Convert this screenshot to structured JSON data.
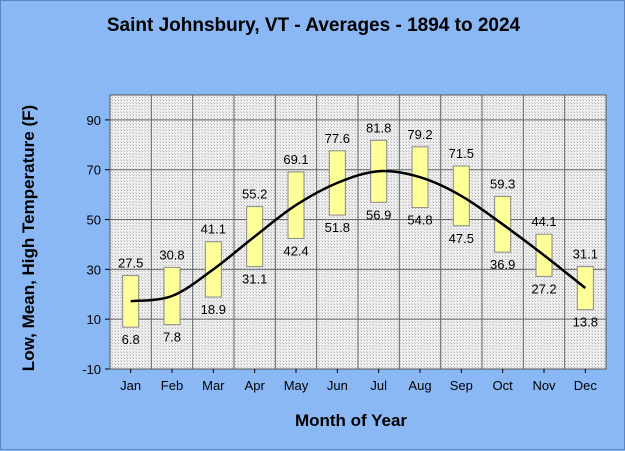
{
  "chart_data": {
    "type": "bar",
    "title": "Saint Johnsbury, VT - Averages - 1894 to 2024",
    "xlabel": "Month of Year",
    "ylabel": "Low, Mean, High Temperature (F)",
    "categories": [
      "Jan",
      "Feb",
      "Mar",
      "Apr",
      "May",
      "Jun",
      "Jul",
      "Aug",
      "Sep",
      "Oct",
      "Nov",
      "Dec"
    ],
    "series": [
      {
        "name": "",
        "values": [
          6.8,
          7.8,
          18.9,
          31.1,
          42.4,
          51.8,
          56.9,
          54.8,
          47.5,
          36.9,
          27.2,
          13.8
        ]
      },
      {
        "name": "",
        "values": [
          27.5,
          30.8,
          41.1,
          55.2,
          69.1,
          77.6,
          81.8,
          79.2,
          71.5,
          59.3,
          44.1,
          31.1
        ]
      },
      {
        "name": "",
        "values": [
          17.2,
          19.3,
          30.0,
          43.2,
          55.8,
          64.7,
          69.4,
          67.0,
          59.5,
          48.1,
          35.7,
          22.5
        ]
      }
    ],
    "ylim": [
      -10,
      100
    ],
    "yticks": [
      -10,
      10,
      30,
      50,
      70,
      90
    ],
    "grid": true,
    "colors": {
      "background": "#8ab8f4",
      "bar_fill": "#ffff99",
      "bar_stroke": "#8a8a8a",
      "line": "#000000",
      "plot_bg": "#e6e6e6",
      "grid": "#666666"
    }
  }
}
